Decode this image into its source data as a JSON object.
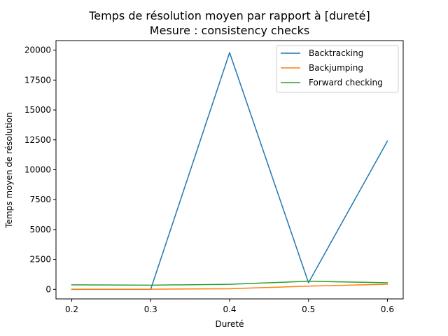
{
  "chart_data": {
    "type": "line",
    "title_line1": "Temps de résolution moyen par rapport à [dureté]",
    "title_line2": "Mesure : consistency checks",
    "xlabel": "Dureté",
    "ylabel": "Temps moyen de résolution",
    "x": [
      0.2,
      0.3,
      0.4,
      0.5,
      0.6
    ],
    "x_ticks": [
      "0.2",
      "0.3",
      "0.4",
      "0.5",
      "0.6"
    ],
    "y_ticks": [
      "0",
      "2500",
      "5000",
      "7500",
      "10000",
      "12500",
      "15000",
      "17500",
      "20000"
    ],
    "xlim": [
      0.18,
      0.62
    ],
    "ylim": [
      -800,
      20800
    ],
    "grid": false,
    "legend_position": "top-right",
    "series": [
      {
        "name": "Backtracking",
        "color": "#1f77b4",
        "values": [
          0,
          0,
          19800,
          550,
          12400
        ]
      },
      {
        "name": "Backjumping",
        "color": "#ff7f0e",
        "values": [
          10,
          10,
          50,
          270,
          430
        ]
      },
      {
        "name": "Forward checking",
        "color": "#2ca02c",
        "values": [
          380,
          350,
          420,
          680,
          550
        ]
      }
    ]
  }
}
